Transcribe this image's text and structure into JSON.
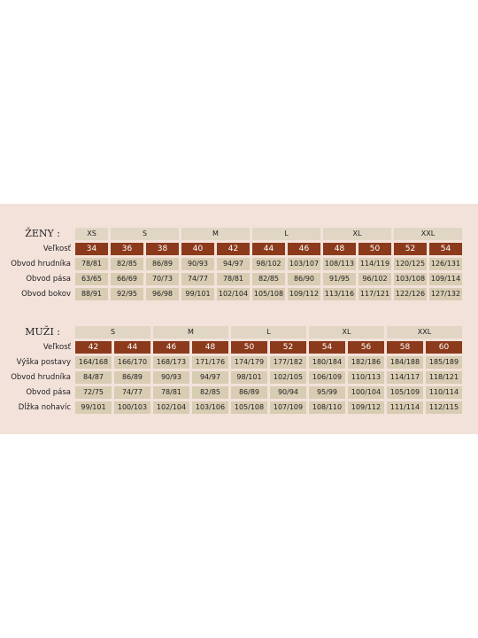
{
  "women": {
    "title": "ŽENY :",
    "size_label": "Veľkosť",
    "groups": [
      {
        "label": "XS",
        "sizes": [
          "34"
        ]
      },
      {
        "label": "S",
        "sizes": [
          "36",
          "38"
        ]
      },
      {
        "label": "M",
        "sizes": [
          "40",
          "42"
        ]
      },
      {
        "label": "L",
        "sizes": [
          "44",
          "46"
        ]
      },
      {
        "label": "XL",
        "sizes": [
          "48",
          "50"
        ]
      },
      {
        "label": "XXL",
        "sizes": [
          "52",
          "54"
        ]
      }
    ],
    "rows": [
      {
        "label": "Obvod hrudníka",
        "cells": [
          "78/81",
          "82/85",
          "86/89",
          "90/93",
          "94/97",
          "98/102",
          "103/107",
          "108/113",
          "114/119",
          "120/125",
          "126/131"
        ]
      },
      {
        "label": "Obvod pása",
        "cells": [
          "63/65",
          "66/69",
          "70/73",
          "74/77",
          "78/81",
          "82/85",
          "86/90",
          "91/95",
          "96/102",
          "103/108",
          "109/114"
        ]
      },
      {
        "label": "Obvod bokov",
        "cells": [
          "88/91",
          "92/95",
          "96/98",
          "99/101",
          "102/104",
          "105/108",
          "109/112",
          "113/116",
          "117/121",
          "122/126",
          "127/132"
        ]
      }
    ]
  },
  "men": {
    "title": "MUŽI :",
    "size_label": "Veľkosť",
    "groups": [
      {
        "label": "S",
        "sizes": [
          "42",
          "44"
        ]
      },
      {
        "label": "M",
        "sizes": [
          "46",
          "48"
        ]
      },
      {
        "label": "L",
        "sizes": [
          "50",
          "52"
        ]
      },
      {
        "label": "XL",
        "sizes": [
          "54",
          "56"
        ]
      },
      {
        "label": "XXL",
        "sizes": [
          "58",
          "60"
        ]
      }
    ],
    "rows": [
      {
        "label": "Výška postavy",
        "cells": [
          "164/168",
          "166/170",
          "168/173",
          "171/176",
          "174/179",
          "177/182",
          "180/184",
          "182/186",
          "184/188",
          "185/189"
        ]
      },
      {
        "label": "Obvod hrudníka",
        "cells": [
          "84/87",
          "86/89",
          "90/93",
          "94/97",
          "98/101",
          "102/105",
          "106/109",
          "110/113",
          "114/117",
          "118/121"
        ]
      },
      {
        "label": "Obvod pása",
        "cells": [
          "72/75",
          "74/77",
          "78/81",
          "82/85",
          "86/89",
          "90/94",
          "95/99",
          "100/104",
          "105/109",
          "110/114"
        ]
      },
      {
        "label": "Dĺžka nohavíc",
        "cells": [
          "99/101",
          "100/103",
          "102/104",
          "103/106",
          "105/108",
          "107/109",
          "108/110",
          "109/112",
          "111/114",
          "112/115"
        ]
      }
    ]
  }
}
